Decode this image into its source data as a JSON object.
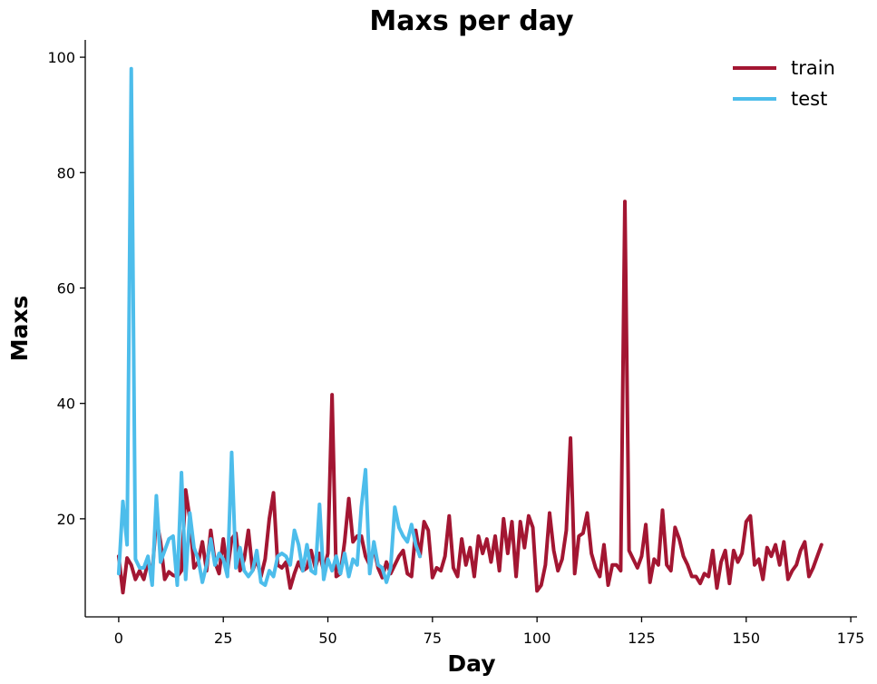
{
  "chart_data": {
    "type": "line",
    "title": "Maxs per day",
    "xlabel": "Day",
    "ylabel": "Maxs",
    "xlim": [
      -8,
      176.5
    ],
    "ylim": [
      3,
      103
    ],
    "x_ticks": [
      0,
      25,
      50,
      75,
      100,
      125,
      150,
      175
    ],
    "y_ticks": [
      20,
      40,
      60,
      80,
      100
    ],
    "grid": false,
    "legend_position": "top-right",
    "series": [
      {
        "name": "train",
        "color": "#a31632",
        "values": [
          13.5,
          7.2,
          13.2,
          12,
          9.5,
          11,
          9.5,
          12.5,
          10.5,
          20,
          16,
          9.5,
          10.8,
          10.2,
          10,
          11,
          25,
          20,
          11.5,
          12.5,
          16,
          11,
          18,
          12.5,
          10.5,
          16.5,
          11,
          16.5,
          17.5,
          11,
          13,
          18,
          11,
          13,
          10,
          13,
          20,
          24.5,
          12,
          11.5,
          12.5,
          8,
          10.5,
          12.5,
          11,
          11.5,
          14.5,
          11.5,
          14,
          11,
          14,
          41.5,
          10,
          10.5,
          16,
          23.5,
          16,
          17,
          17,
          13.5,
          12,
          15,
          11.5,
          9.8,
          12.5,
          10.5,
          12,
          13.5,
          14.5,
          10.5,
          10,
          18,
          13.5,
          19.5,
          18,
          9.8,
          11.5,
          11,
          13.5,
          20.5,
          11.5,
          10,
          16.5,
          12,
          15,
          10,
          17,
          14,
          16.5,
          12.5,
          17,
          11,
          20,
          14,
          19.5,
          10,
          19.5,
          15,
          20.5,
          18.5,
          7.5,
          8.5,
          12,
          21,
          14.5,
          11,
          13,
          18,
          34,
          10.5,
          17,
          17.5,
          21,
          14,
          11.5,
          10,
          15.5,
          8.5,
          12,
          12,
          11,
          75,
          14.5,
          13,
          11.5,
          13.5,
          19,
          9,
          13,
          12,
          21.5,
          12,
          11,
          18.5,
          16.5,
          13.5,
          12,
          10,
          10,
          8.8,
          10.5,
          10,
          14.5,
          8,
          12.5,
          14.5,
          8.8,
          14.5,
          12.5,
          14,
          19.5,
          20.5,
          12,
          13,
          9.5,
          15,
          13.5,
          15.5,
          12,
          16,
          9.5,
          11,
          12,
          14.5,
          16,
          10,
          11.5,
          13.5,
          15.5
        ]
      },
      {
        "name": "test",
        "color": "#4dbdeb",
        "values": [
          10.5,
          23,
          15.5,
          98,
          13,
          11.5,
          11.5,
          13.5,
          8.5,
          24,
          12.5,
          14.5,
          16.5,
          17,
          8.5,
          28,
          9.5,
          21,
          15,
          13,
          9,
          12,
          16.5,
          12,
          14,
          13,
          10,
          31.5,
          11.5,
          15,
          11,
          10,
          11,
          14.5,
          9,
          8.5,
          11,
          10,
          13.5,
          14,
          13.5,
          12,
          18,
          15.5,
          11,
          15.5,
          11,
          10.5,
          22.5,
          9.5,
          13,
          11,
          13.5,
          10.5,
          14,
          10,
          13,
          12,
          22,
          28.5,
          10.5,
          16,
          12,
          11.5,
          9,
          11.5,
          22,
          18.5,
          17,
          16,
          19,
          15.5,
          13.5
        ]
      }
    ]
  }
}
